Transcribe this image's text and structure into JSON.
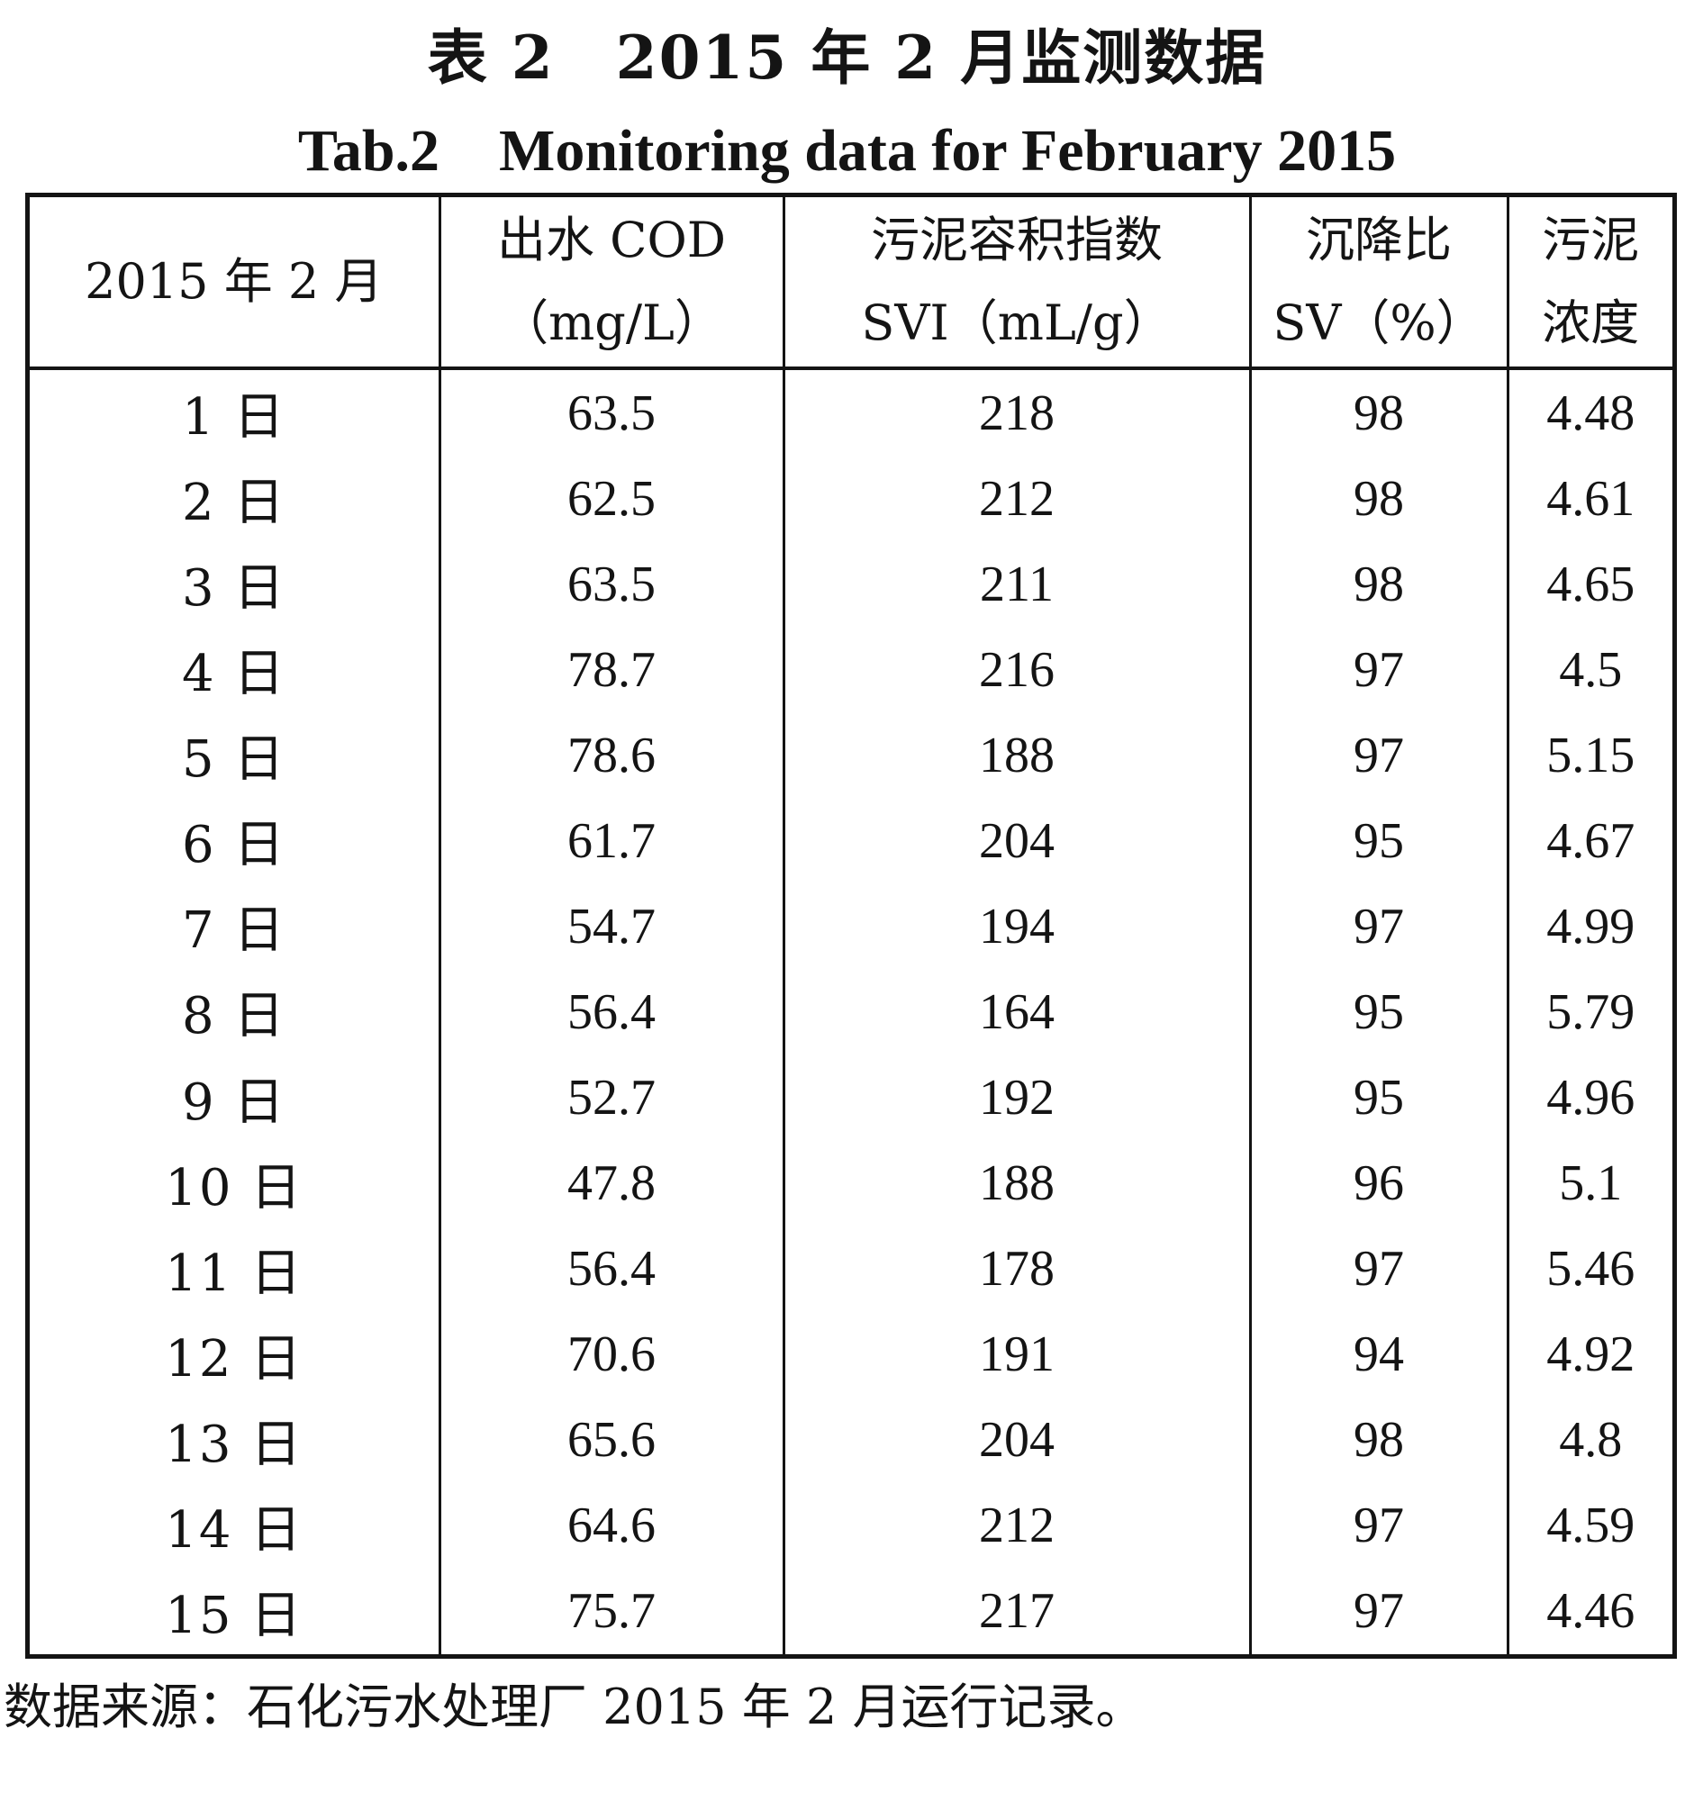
{
  "caption": {
    "title_cn": "表 2　2015 年 2 月监测数据",
    "title_en": "Tab.2　Monitoring data for February 2015"
  },
  "table": {
    "headers": [
      {
        "line1": "2015 年 2 月",
        "line2": ""
      },
      {
        "line1": "出水 COD",
        "line2": "（mg/L）"
      },
      {
        "line1": "污泥容积指数",
        "line2": "SVI（mL/g）"
      },
      {
        "line1": "沉降比",
        "line2": "SV（%）"
      },
      {
        "line1": "污泥",
        "line2": "浓度"
      }
    ],
    "rows": [
      {
        "day": "1 日",
        "cod": "63.5",
        "svi": "218",
        "sv": "98",
        "conc": "4.48"
      },
      {
        "day": "2 日",
        "cod": "62.5",
        "svi": "212",
        "sv": "98",
        "conc": "4.61"
      },
      {
        "day": "3 日",
        "cod": "63.5",
        "svi": "211",
        "sv": "98",
        "conc": "4.65"
      },
      {
        "day": "4 日",
        "cod": "78.7",
        "svi": "216",
        "sv": "97",
        "conc": "4.5"
      },
      {
        "day": "5 日",
        "cod": "78.6",
        "svi": "188",
        "sv": "97",
        "conc": "5.15"
      },
      {
        "day": "6 日",
        "cod": "61.7",
        "svi": "204",
        "sv": "95",
        "conc": "4.67"
      },
      {
        "day": "7 日",
        "cod": "54.7",
        "svi": "194",
        "sv": "97",
        "conc": "4.99"
      },
      {
        "day": "8 日",
        "cod": "56.4",
        "svi": "164",
        "sv": "95",
        "conc": "5.79"
      },
      {
        "day": "9 日",
        "cod": "52.7",
        "svi": "192",
        "sv": "95",
        "conc": "4.96"
      },
      {
        "day": "10 日",
        "cod": "47.8",
        "svi": "188",
        "sv": "96",
        "conc": "5.1"
      },
      {
        "day": "11 日",
        "cod": "56.4",
        "svi": "178",
        "sv": "97",
        "conc": "5.46"
      },
      {
        "day": "12 日",
        "cod": "70.6",
        "svi": "191",
        "sv": "94",
        "conc": "4.92"
      },
      {
        "day": "13 日",
        "cod": "65.6",
        "svi": "204",
        "sv": "98",
        "conc": "4.8"
      },
      {
        "day": "14 日",
        "cod": "64.6",
        "svi": "212",
        "sv": "97",
        "conc": "4.59"
      },
      {
        "day": "15 日",
        "cod": "75.7",
        "svi": "217",
        "sv": "97",
        "conc": "4.46"
      }
    ]
  },
  "source_note": "数据来源：石化污水处理厂 2015 年 2 月运行记录。"
}
